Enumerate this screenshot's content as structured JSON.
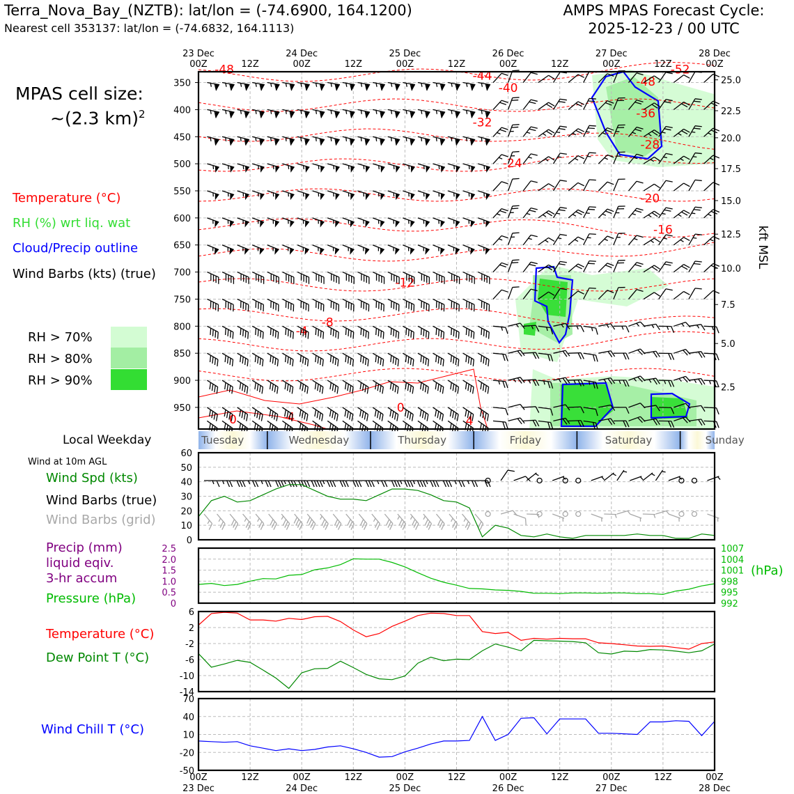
{
  "header": {
    "title": "Terra_Nova_Bay_(NZTB): lat/lon = (-74.6900, 164.1200)",
    "subtitle": "Nearest cell 353137: lat/lon = (-74.6832, 164.1113)",
    "cycle_line1": "AMPS MPAS Forecast Cycle:",
    "cycle_line2": "2025-12-23 / 00 UTC"
  },
  "cell_size": {
    "line1": "MPAS cell size:",
    "line2": "~(2.3 km)",
    "sup": "2"
  },
  "colors": {
    "temperature": "#ff0000",
    "rh": "#33dd33",
    "cloud": "#0000ff",
    "barbs": "#000000",
    "grid_barbs": "#a8a8a8",
    "wind_speed": "#008800",
    "precip": "#800080",
    "pressure": "#00bb00",
    "dewpoint": "#008800",
    "windchill": "#0000ff",
    "rh70": "#d3fcd3",
    "rh80": "#a3eea3",
    "rh90": "#33dd33"
  },
  "legend": {
    "temperature": "Temperature (°C)",
    "rh": "RH (%) wrt liq. wat",
    "cloud": "Cloud/Precip outline",
    "barbs": "Wind Barbs (kts) (true)",
    "rh70": "RH > 70%",
    "rh80": "RH > 80%",
    "rh90": "RH > 90%"
  },
  "weekday": {
    "label": "Local Weekday",
    "days": [
      "Tuesday",
      "Wednesday",
      "Thursday",
      "Friday",
      "Saturday",
      "Sunday"
    ]
  },
  "panels": {
    "wind_note": "Wind at 10m AGL",
    "wind_speed_label": "Wind Spd (kts)",
    "wind_barbs_label": "Wind Barbs (true)",
    "wind_barbs_grid_label": "Wind Barbs (grid)",
    "precip_line1": "Precip (mm)",
    "precip_line2": "liquid eqiv.",
    "precip_line3": "3-hr accum",
    "pressure_label": "Pressure (hPa)",
    "pressure_unit": "(hPa)",
    "temp_label": "Temperature (°C)",
    "dew_label": "Dew Point T (°C)",
    "windchill_label": "Wind Chill T (°C)"
  },
  "chart_data": [
    {
      "type": "line",
      "name": "cross-section",
      "x_ticks": [
        "00Z",
        "12Z",
        "00Z",
        "12Z",
        "00Z",
        "12Z",
        "00Z",
        "12Z",
        "00Z",
        "12Z",
        "00Z"
      ],
      "x_dates": [
        "23 Dec",
        "",
        "24 Dec",
        "",
        "25 Dec",
        "",
        "26 Dec",
        "",
        "27 Dec",
        "",
        "28 Dec"
      ],
      "x_hours": [
        0,
        12,
        24,
        36,
        48,
        60,
        72,
        84,
        96,
        108,
        120
      ],
      "ylabel_right": "kft MSL",
      "y_pressure_ticks": [
        350,
        400,
        450,
        500,
        550,
        600,
        650,
        700,
        750,
        800,
        850,
        900,
        950
      ],
      "y_kft_ticks": [
        "25.0",
        "22.5",
        "20.0",
        "17.5",
        "15.0",
        "12.5",
        "10.0",
        "7.5",
        "5.0",
        "2.5"
      ],
      "y_kft_at_pressure": [
        345,
        402,
        452,
        509,
        568,
        630,
        693,
        760,
        832,
        912
      ],
      "ylim_pressure": [
        330,
        990
      ],
      "isotherm_labels": [
        {
          "label": "-48",
          "hour": 6,
          "p": 333
        },
        {
          "label": "-44",
          "hour": 66,
          "p": 345
        },
        {
          "label": "-40",
          "hour": 72,
          "p": 367
        },
        {
          "label": "-36",
          "hour": 104,
          "p": 414
        },
        {
          "label": "-32",
          "hour": 66,
          "p": 431
        },
        {
          "label": "-28",
          "hour": 105,
          "p": 472
        },
        {
          "label": "-24",
          "hour": 73,
          "p": 506
        },
        {
          "label": "-20",
          "hour": 105,
          "p": 571
        },
        {
          "label": "-16",
          "hour": 108,
          "p": 629
        },
        {
          "label": "-12",
          "hour": 48,
          "p": 727
        },
        {
          "label": "-8",
          "hour": 30,
          "p": 800
        },
        {
          "label": "-4",
          "hour": 24,
          "p": 816
        },
        {
          "label": "0",
          "hour": 47,
          "p": 958
        },
        {
          "label": "4",
          "hour": 63,
          "p": 982
        },
        {
          "label": "-52",
          "hour": 112,
          "p": 333
        },
        {
          "label": "-48",
          "hour": 104,
          "p": 356
        },
        {
          "label": "-4",
          "hour": 21,
          "p": 975
        },
        {
          "label": "0",
          "hour": 8,
          "p": 980
        }
      ]
    },
    {
      "type": "line",
      "name": "surface-wind",
      "ylim": [
        0,
        60
      ],
      "yticks": [
        0,
        10,
        20,
        30,
        40,
        50,
        60
      ],
      "hours": [
        0,
        3,
        6,
        9,
        12,
        15,
        18,
        21,
        24,
        27,
        30,
        33,
        36,
        39,
        42,
        45,
        48,
        51,
        54,
        57,
        60,
        63,
        66,
        69,
        72,
        75,
        78,
        81,
        84,
        87,
        90,
        93,
        96,
        99,
        102,
        105,
        108,
        111,
        114,
        117,
        120
      ],
      "series": [
        {
          "values": [
            16,
            27,
            30,
            26,
            27,
            31,
            35,
            38,
            38,
            34,
            30,
            28,
            28,
            27,
            31,
            35,
            35,
            34,
            31,
            27,
            26,
            22,
            2,
            10,
            8,
            3,
            2,
            4,
            2,
            1,
            3,
            3,
            3,
            3,
            4,
            3,
            3,
            1,
            1,
            4,
            3
          ]
        }
      ]
    },
    {
      "type": "line",
      "name": "precip-pressure",
      "ylim_precip": [
        0,
        2.5
      ],
      "yticks_precip": [
        "0",
        "0.5",
        "1.0",
        "1.5",
        "2.0",
        "2.5"
      ],
      "ylim_pressure": [
        992,
        1007
      ],
      "yticks_pressure": [
        "992",
        "995",
        "998",
        "1001",
        "1004",
        "1007"
      ],
      "hours": [
        0,
        3,
        6,
        9,
        12,
        15,
        18,
        21,
        24,
        27,
        30,
        33,
        36,
        39,
        42,
        45,
        48,
        51,
        54,
        57,
        60,
        63,
        66,
        69,
        72,
        75,
        78,
        81,
        84,
        87,
        90,
        93,
        96,
        99,
        102,
        105,
        108,
        111,
        114,
        117,
        120
      ],
      "series": [
        {
          "values": [
            997.1,
            997.4,
            996.8,
            997.1,
            998.0,
            998.7,
            998.6,
            999.6,
            999.8,
            1001.1,
            1001.6,
            1002.5,
            1004.1,
            1004.0,
            1004.0,
            1003.1,
            1001.9,
            1000.3,
            998.8,
            997.7,
            996.9,
            996.0,
            995.9,
            995.6,
            995.5,
            995.2,
            994.7,
            994.7,
            994.6,
            994.8,
            994.8,
            994.7,
            994.8,
            994.8,
            994.6,
            994.6,
            994.4,
            995.3,
            995.8,
            996.7,
            997.3
          ]
        }
      ]
    },
    {
      "type": "line",
      "name": "temperature-dewpoint",
      "ylim": [
        -14,
        6
      ],
      "yticks": [
        -14,
        -10,
        -6,
        -2,
        2,
        6
      ],
      "hours": [
        0,
        3,
        6,
        9,
        12,
        15,
        18,
        21,
        24,
        27,
        30,
        33,
        36,
        39,
        42,
        45,
        48,
        51,
        54,
        57,
        60,
        63,
        66,
        69,
        72,
        75,
        78,
        81,
        84,
        87,
        90,
        93,
        96,
        99,
        102,
        105,
        108,
        111,
        114,
        117,
        120
      ],
      "series": [
        {
          "values": [
            2.6,
            5.5,
            5.8,
            5.6,
            3.9,
            3.9,
            3.6,
            4.3,
            4.0,
            4.7,
            4.8,
            3.5,
            1.4,
            -0.3,
            0.5,
            2.3,
            3.6,
            5.0,
            5.6,
            5.5,
            5.0,
            5.0,
            1.0,
            0.5,
            0.8,
            -1.2,
            -0.7,
            -0.9,
            -0.7,
            -0.8,
            -0.8,
            -1.8,
            -2.0,
            -2.3,
            -2.6,
            -2.7,
            -2.6,
            -3.0,
            -3.4,
            -2.0,
            -1.6
          ]
        },
        {
          "values": [
            -4.5,
            -7.9,
            -7.1,
            -6.2,
            -6.7,
            -8.6,
            -10.6,
            -13.2,
            -9.3,
            -8.3,
            -8.2,
            -6.4,
            -8.0,
            -9.7,
            -10.8,
            -11.0,
            -10.1,
            -6.9,
            -5.4,
            -6.3,
            -5.9,
            -6.0,
            -3.8,
            -2.1,
            -2.9,
            -3.8,
            -1.2,
            -1.3,
            -1.4,
            -1.5,
            -1.8,
            -4.3,
            -4.6,
            -3.9,
            -4.0,
            -3.5,
            -3.6,
            -3.9,
            -4.3,
            -3.8,
            -2.1
          ]
        }
      ]
    },
    {
      "type": "line",
      "name": "wind-chill",
      "ylim": [
        -50,
        70
      ],
      "yticks": [
        -50,
        -20,
        10,
        40,
        70
      ],
      "hours": [
        0,
        3,
        6,
        9,
        12,
        15,
        18,
        21,
        24,
        27,
        30,
        33,
        36,
        39,
        42,
        45,
        48,
        51,
        54,
        57,
        60,
        63,
        66,
        69,
        72,
        75,
        78,
        81,
        84,
        87,
        90,
        93,
        96,
        99,
        102,
        105,
        108,
        111,
        114,
        117,
        120
      ],
      "series": [
        {
          "values": [
            -1,
            -2,
            -3,
            -2,
            -9,
            -13,
            -17,
            -14,
            -17,
            -15,
            -11,
            -9,
            -14,
            -20,
            -28,
            -27,
            -19,
            -13,
            -6,
            -1,
            -1,
            0,
            40,
            0,
            10,
            37,
            38,
            11,
            36,
            36,
            36,
            12,
            12,
            11,
            10,
            31,
            31,
            33,
            32,
            8,
            32
          ]
        }
      ]
    }
  ]
}
